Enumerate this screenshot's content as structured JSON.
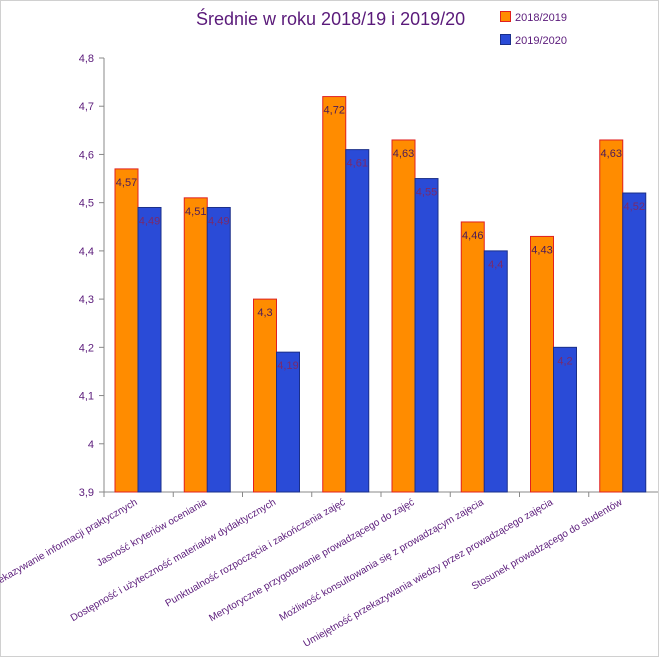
{
  "chart_data": {
    "type": "bar",
    "title": "Średnie  w roku 2018/19 i 2019/20",
    "categories": [
      "Przekazywanie informacji praktycznych",
      "Jasność kryteriów oceniania",
      "Dostępność i użyteczność materiałów dydaktycznych",
      "Punktualność rozpoczęcia i zakończenia zajęć",
      "Merytoryczne przygotowanie prowadzącego do zajęć",
      "Możliwość konsultowania się z prowadzącym zajęcia",
      "Umiejętność przekazywania wiedzy przez prowadzącego zajęcia",
      "Stosunek prowadzącego do studentów"
    ],
    "series": [
      {
        "name": "2018/2019",
        "color": "#ff8c00",
        "border": "#e02020",
        "values": [
          4.57,
          4.51,
          4.3,
          4.72,
          4.63,
          4.46,
          4.43,
          4.63
        ],
        "labels": [
          "4,57",
          "4,51",
          "4,3",
          "4,72",
          "4,63",
          "4,46",
          "4,43",
          "4,63"
        ]
      },
      {
        "name": "2019/2020",
        "color": "#2a4bd7",
        "border": "#1a2f8a",
        "values": [
          4.49,
          4.49,
          4.19,
          4.61,
          4.55,
          4.4,
          4.2,
          4.52
        ],
        "labels": [
          "4,49",
          "4,49",
          "4,19",
          "4,61",
          "4,55",
          "4,4",
          "4,2",
          "4,52"
        ]
      }
    ],
    "ylim": [
      3.9,
      4.8
    ],
    "yticks": [
      "3,9",
      "4",
      "4,1",
      "4,2",
      "4,3",
      "4,4",
      "4,5",
      "4,6",
      "4,7",
      "4,8"
    ],
    "xlabel": "",
    "ylabel": "",
    "grid": false,
    "legend": "top-right"
  }
}
